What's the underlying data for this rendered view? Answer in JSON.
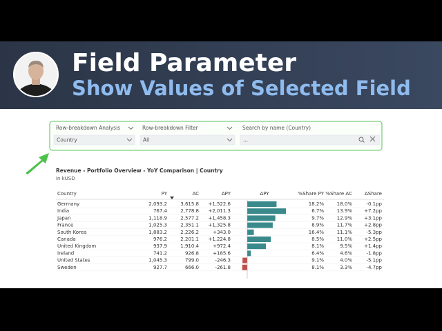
{
  "header": {
    "title": "Field Parameter",
    "subtitle": "Show Values of Selected Field"
  },
  "slicers": [
    {
      "label": "Row-breakdown Analysis",
      "value": "Country"
    },
    {
      "label": "Row-breakdown Filter",
      "value": "All"
    },
    {
      "label": "Search by name (Country)",
      "value": "..."
    }
  ],
  "table": {
    "title": "Revenue - Portfolio Overview - YoY Comparison | Country",
    "unit": "in kUSD",
    "columns": [
      "Country",
      "PY",
      "AC",
      "ΔPY",
      "ΔPY",
      "%Share PY",
      "%Share AC",
      "ΔShare"
    ],
    "rows": [
      [
        "Germany",
        "2,093.2",
        "3,615.8",
        "+1,522.6",
        "18.2%",
        "18.0%",
        "-0.1pp"
      ],
      [
        "India",
        "767.4",
        "2,778.8",
        "+2,011.3",
        "6.7%",
        "13.9%",
        "+7.2pp"
      ],
      [
        "Japan",
        "1,118.9",
        "2,577.2",
        "+1,458.3",
        "9.7%",
        "12.9%",
        "+3.1pp"
      ],
      [
        "France",
        "1,025.3",
        "2,351.1",
        "+1,325.8",
        "8.9%",
        "11.7%",
        "+2.8pp"
      ],
      [
        "South Korea",
        "1,883.2",
        "2,226.2",
        "+343.0",
        "16.4%",
        "11.1%",
        "-5.3pp"
      ],
      [
        "Canada",
        "976.2",
        "2,201.1",
        "+1,224.8",
        "8.5%",
        "11.0%",
        "+2.5pp"
      ],
      [
        "United Kingdom",
        "937.9",
        "1,910.4",
        "+972.4",
        "8.1%",
        "9.5%",
        "+1.4pp"
      ],
      [
        "Ireland",
        "741.2",
        "926.8",
        "+185.6",
        "6.4%",
        "4.6%",
        "-1.8pp"
      ],
      [
        "United States",
        "1,045.3",
        "799.0",
        "-246.3",
        "9.1%",
        "4.0%",
        "-5.1pp"
      ],
      [
        "Sweden",
        "927.7",
        "666.0",
        "-261.8",
        "8.1%",
        "3.3%",
        "-4.7pp"
      ]
    ]
  }
}
